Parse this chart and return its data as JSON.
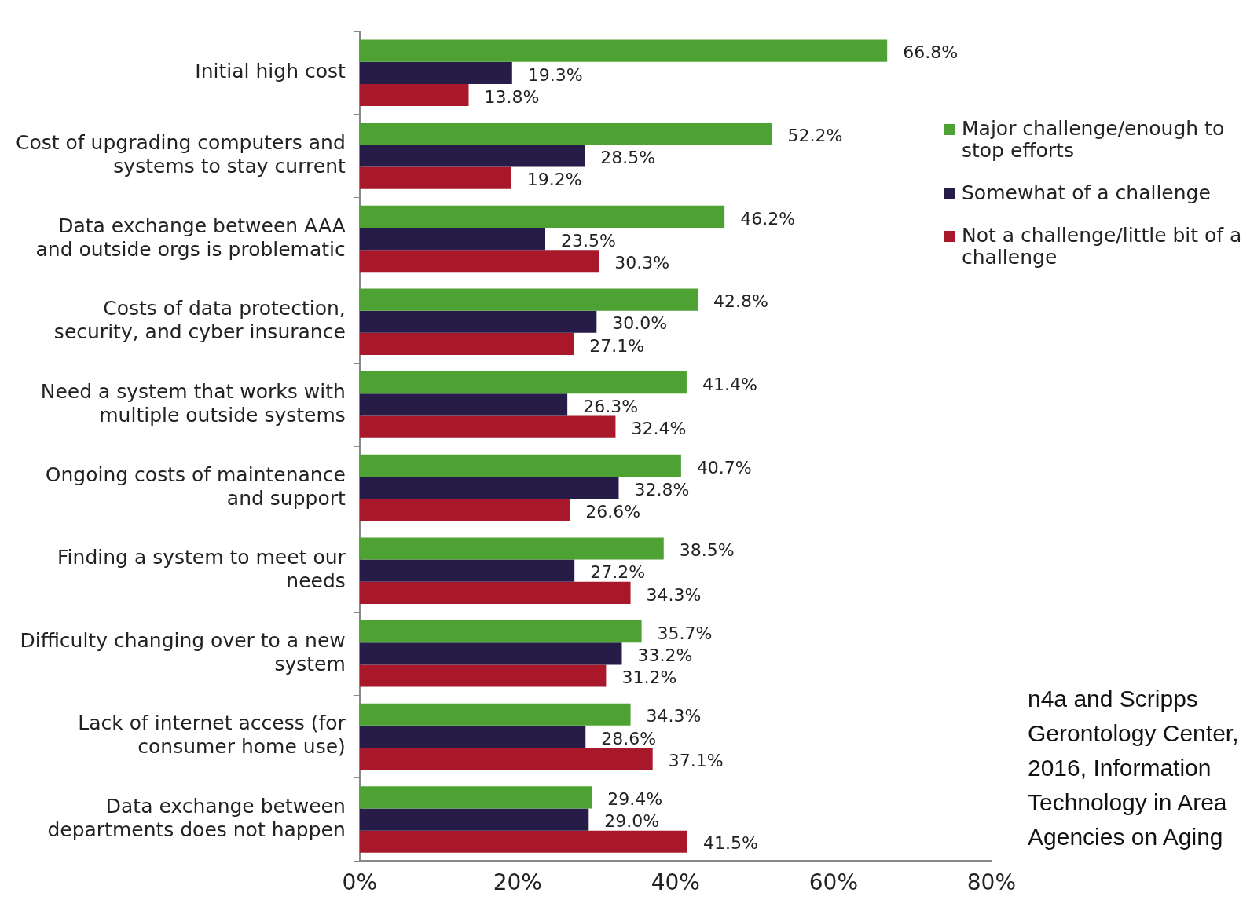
{
  "chart_data": {
    "type": "bar",
    "orientation": "horizontal",
    "categories": [
      "Initial high cost",
      "Cost of upgrading computers and systems to stay current",
      "Data exchange between AAA and outside orgs is problematic",
      "Costs of data protection, security, and cyber insurance",
      "Need a system that works with multiple outside systems",
      "Ongoing costs of maintenance and support",
      "Finding a system to meet our needs",
      "Difficulty changing over to a new system",
      "Lack of internet access (for consumer home use)",
      "Data exchange between departments does not happen"
    ],
    "series": [
      {
        "name": "Major challenge/enough to stop efforts",
        "color": "#4ea233",
        "values": [
          66.8,
          52.2,
          46.2,
          42.8,
          41.4,
          40.7,
          38.5,
          35.7,
          34.3,
          29.4
        ],
        "value_labels": [
          "66.8%",
          "52.2%",
          "46.2%",
          "42.8%",
          "41.4%",
          "40.7%",
          "38.5%",
          "35.7%",
          "34.3%",
          "29.4%"
        ]
      },
      {
        "name": "Somewhat of a challenge",
        "color": "#261c47",
        "values": [
          19.3,
          28.5,
          23.5,
          30.0,
          26.3,
          32.8,
          27.2,
          33.2,
          28.6,
          29.0
        ],
        "value_labels": [
          "19.3%",
          "28.5%",
          "23.5%",
          "30.0%",
          "26.3%",
          "32.8%",
          "27.2%",
          "33.2%",
          "28.6%",
          "29.0%"
        ]
      },
      {
        "name": "Not a challenge/little bit of a challenge",
        "color": "#a8182a",
        "values": [
          13.8,
          19.2,
          30.3,
          27.1,
          32.4,
          26.6,
          34.3,
          31.2,
          37.1,
          41.5
        ],
        "value_labels": [
          "13.8%",
          "19.2%",
          "30.3%",
          "27.1%",
          "32.4%",
          "26.6%",
          "34.3%",
          "31.2%",
          "37.1%",
          "41.5%"
        ]
      }
    ],
    "xlim": [
      0,
      80
    ],
    "xticks": [
      {
        "value": 0,
        "label": "0%"
      },
      {
        "value": 20,
        "label": "20%"
      },
      {
        "value": 40,
        "label": "40%"
      },
      {
        "value": 60,
        "label": "60%"
      },
      {
        "value": 80,
        "label": "80%"
      }
    ],
    "grid": false,
    "legend": "right",
    "annotations": [
      "n4a and Scripps Gerontology Center, 2016, Information Technology in Area Agencies on Aging"
    ]
  }
}
